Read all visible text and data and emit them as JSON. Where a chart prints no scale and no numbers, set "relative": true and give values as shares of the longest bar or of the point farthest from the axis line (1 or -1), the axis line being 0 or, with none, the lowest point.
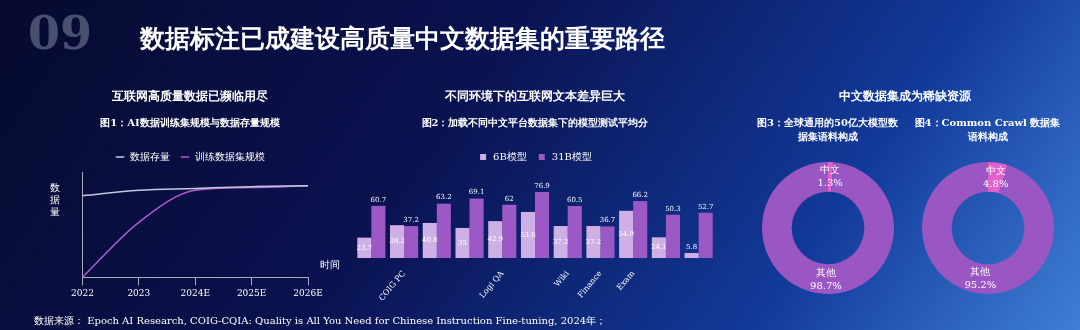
{
  "chart_data": [
    {
      "type": "other",
      "title": "数据标注已成建设高质量中文数据集的重要路径",
      "annotations": [
        "09",
        "数据来源： Epoch AI Research, COIG-CQIA: Quality is All You Need for Chinese Instruction Fine-tuning, 2024年；"
      ]
    },
    {
      "type": "line",
      "title": "互联网高质量数据已濒临用尽",
      "subtitle": "图1：AI数据训练集规模与数据存量规模",
      "xlabel": "时间",
      "ylabel": "数据量",
      "categories": [
        "2022",
        "2023",
        "2024E",
        "2025E",
        "2026E"
      ],
      "relative": true,
      "legend": "top",
      "series": [
        {
          "name": "数据存量",
          "color": "#c8c8dc",
          "values": [
            0.89,
            0.95,
            0.97,
            0.99,
            1
          ]
        },
        {
          "name": "训练数据集规模",
          "color": "#b05ad0",
          "values": [
            0,
            0.6,
            0.95,
            0.98,
            1
          ]
        }
      ]
    },
    {
      "type": "bar",
      "title": "不同环境下的互联网文本差异巨大",
      "subtitle": "图2：加载不同中文平台数据集下的模型测试平均分",
      "categories": [
        null,
        "COIG PC",
        null,
        null,
        "Logi QA",
        null,
        "Wiki",
        "Finance",
        "Exam",
        null,
        null
      ],
      "legend": "top",
      "data_labels": true,
      "series": [
        {
          "name": "6B模型",
          "color": "#cfb0e6",
          "values": [
            23.7,
            38.2,
            40.8,
            35.0,
            42.9,
            53.6,
            37.2,
            37.2,
            54.9,
            24.1,
            5.8
          ]
        },
        {
          "name": "31B模型",
          "color": "#9c58c4",
          "values": [
            60.7,
            37.2,
            63.2,
            69.1,
            62.0,
            76.9,
            60.5,
            36.7,
            66.2,
            50.3,
            52.7
          ]
        }
      ]
    },
    {
      "type": "donut",
      "title": "中文数据集成为稀缺资源",
      "subtitle": "图3：全球通用的50亿大模型数据集语料构成",
      "categories": [
        "中文",
        "其他"
      ],
      "values": [
        1.3,
        98.7
      ],
      "value_labels": [
        "1.3%",
        "98.7%"
      ],
      "colors": [
        "#e262cc",
        "#9a56c2"
      ]
    },
    {
      "type": "donut",
      "subtitle": "图4：Common Crawl 数据集语料构成",
      "categories": [
        "中文",
        "其他"
      ],
      "values": [
        4.8,
        95.2
      ],
      "value_labels": [
        "4.8%",
        "95.2%"
      ],
      "colors": [
        "#e262cc",
        "#9a56c2"
      ]
    }
  ]
}
